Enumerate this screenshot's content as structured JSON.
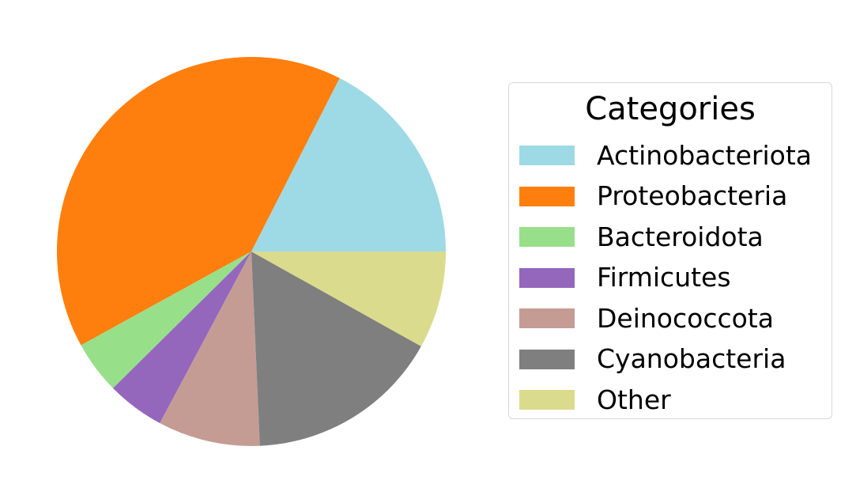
{
  "chart_data": {
    "type": "pie",
    "categories": [
      "Actinobacteriota",
      "Proteobacteria",
      "Bacteroidota",
      "Firmicutes",
      "Deinococcota",
      "Cyanobacteria",
      "Other"
    ],
    "values": [
      17.5,
      40.5,
      4.4,
      4.8,
      8.5,
      16.2,
      8.1
    ],
    "colors": [
      "#9edae5",
      "#ff7f0e",
      "#98df8a",
      "#9467bd",
      "#c49c94",
      "#7f7f7f",
      "#dbdb8d"
    ],
    "start_angle_deg": 0,
    "direction": "counterclockwise",
    "legend": {
      "title": "Categories",
      "placement": "right"
    }
  }
}
